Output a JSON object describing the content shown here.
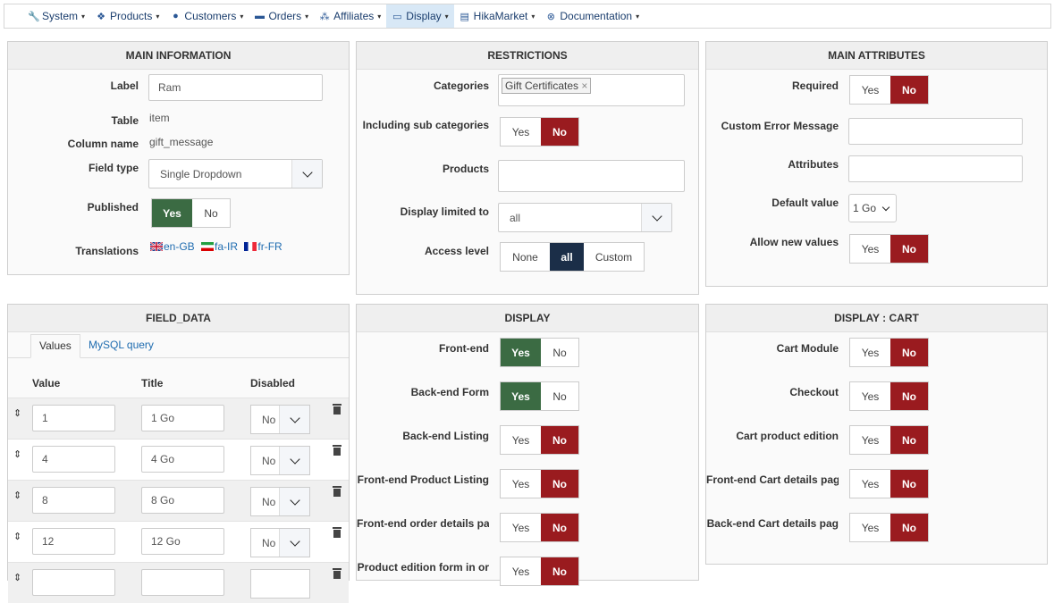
{
  "nav": [
    {
      "icon": "wrench-icon",
      "glyph": "🔧",
      "label": "System",
      "active": false
    },
    {
      "icon": "cubes-icon",
      "glyph": "❖",
      "label": "Products",
      "active": false
    },
    {
      "icon": "user-icon",
      "glyph": "●",
      "label": "Customers",
      "active": false
    },
    {
      "icon": "credit-card-icon",
      "glyph": "▬",
      "label": "Orders",
      "active": false
    },
    {
      "icon": "users-icon",
      "glyph": "⁂",
      "label": "Affiliates",
      "active": false
    },
    {
      "icon": "desktop-icon",
      "glyph": "▭",
      "label": "Display",
      "active": true
    },
    {
      "icon": "store-icon",
      "glyph": "▤",
      "label": "HikaMarket",
      "active": false
    },
    {
      "icon": "lifebuoy-icon",
      "glyph": "⊗",
      "label": "Documentation",
      "active": false
    }
  ],
  "main_info": {
    "title": "MAIN INFORMATION",
    "label_label": "Label",
    "label_value": "Ram",
    "table_label": "Table",
    "table_value": "item",
    "column_label": "Column name",
    "column_value": "gift_message",
    "fieldtype_label": "Field type",
    "fieldtype_value": "Single Dropdown",
    "published_label": "Published",
    "yes": "Yes",
    "no": "No",
    "translations_label": "Translations",
    "translations": [
      "en-GB",
      "fa-IR",
      "fr-FR"
    ]
  },
  "restrictions": {
    "title": "RESTRICTIONS",
    "categories_label": "Categories",
    "category_tag": "Gift Certificates",
    "tag_remove": "×",
    "subcat_label": "Including sub categories",
    "products_label": "Products",
    "display_limited_label": "Display limited to",
    "display_limited_value": "all",
    "access_label": "Access level",
    "access_none": "None",
    "access_all": "all",
    "access_custom": "Custom",
    "yes": "Yes",
    "no": "No"
  },
  "main_attributes": {
    "title": "MAIN ATTRIBUTES",
    "required_label": "Required",
    "error_label": "Custom Error Message",
    "attributes_label": "Attributes",
    "default_label": "Default value",
    "default_value": "1 Go",
    "allow_new_label": "Allow new values",
    "yes": "Yes",
    "no": "No"
  },
  "field_data": {
    "title": "FIELD_DATA",
    "tab_values": "Values",
    "tab_mysql": "MySQL query",
    "col_value": "Value",
    "col_title": "Title",
    "col_disabled": "Disabled",
    "rows": [
      {
        "value": "1",
        "title": "1 Go",
        "disabled": "No"
      },
      {
        "value": "4",
        "title": "4 Go",
        "disabled": "No"
      },
      {
        "value": "8",
        "title": "8 Go",
        "disabled": "No"
      },
      {
        "value": "12",
        "title": "12 Go",
        "disabled": "No"
      }
    ]
  },
  "display": {
    "title": "DISPLAY",
    "rows": [
      {
        "label": "Front-end",
        "state": "yes"
      },
      {
        "label": "Back-end Form",
        "state": "yes"
      },
      {
        "label": "Back-end Listing",
        "state": "no"
      },
      {
        "label": "Front-end Product Listing",
        "state": "no"
      },
      {
        "label": "Front-end order details pa",
        "state": "no"
      },
      {
        "label": "Product edition form in or",
        "state": "no"
      }
    ],
    "yes": "Yes",
    "no": "No"
  },
  "display_cart": {
    "title": "DISPLAY : CART",
    "rows": [
      {
        "label": "Cart Module",
        "state": "no"
      },
      {
        "label": "Checkout",
        "state": "no"
      },
      {
        "label": "Cart product edition",
        "state": "no"
      },
      {
        "label": "Front-end Cart details pag",
        "state": "no"
      },
      {
        "label": "Back-end Cart details pag",
        "state": "no"
      }
    ],
    "yes": "Yes",
    "no": "No"
  },
  "colors": {
    "yes_active": "#3b6b43",
    "no_active": "#9a1b1f",
    "access_active": "#1b2e48",
    "nav_active": "#d8e8f6"
  }
}
